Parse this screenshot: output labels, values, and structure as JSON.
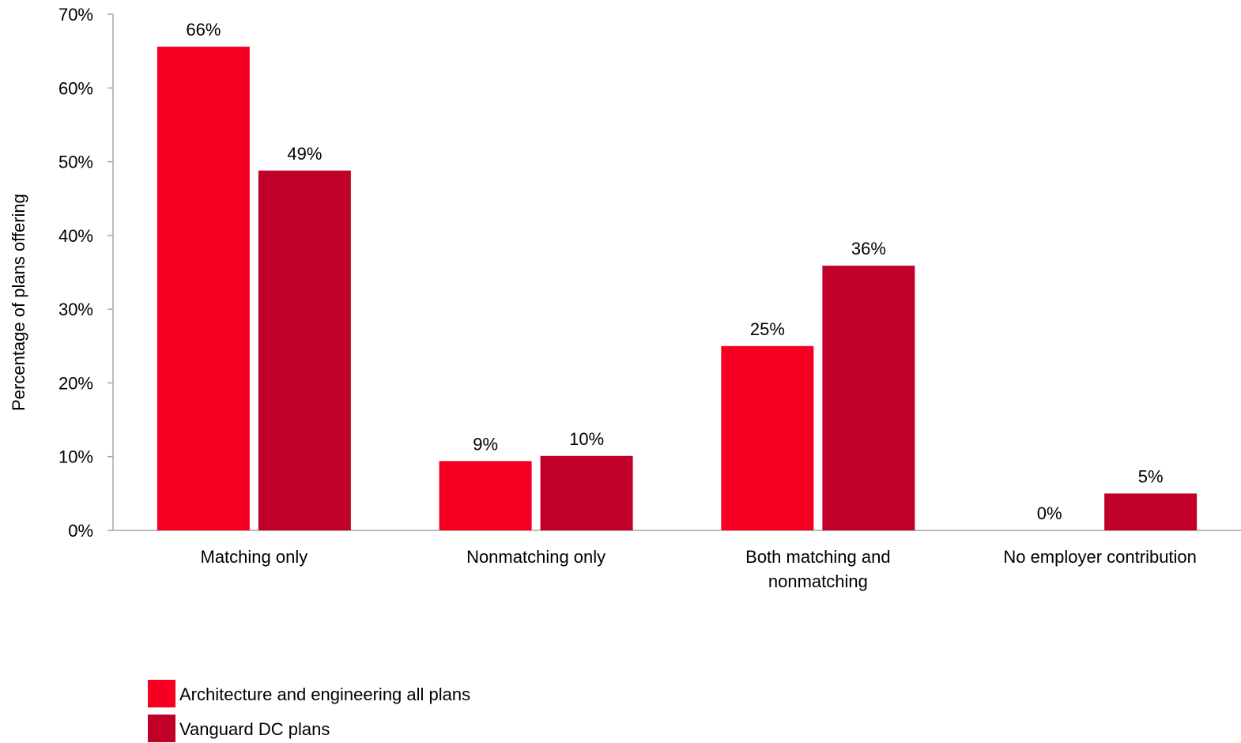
{
  "chart_data": {
    "type": "bar",
    "title": "",
    "xlabel": "",
    "ylabel": "Percentage of plans offering",
    "ylim": [
      0,
      70
    ],
    "yticks": [
      0,
      10,
      20,
      30,
      40,
      50,
      60,
      70
    ],
    "ytick_labels": [
      "0%",
      "10%",
      "20%",
      "30%",
      "40%",
      "50%",
      "60%",
      "70%"
    ],
    "value_suffix": "%",
    "grid": false,
    "legend_position": "bottom-left",
    "categories": [
      [
        "Matching only"
      ],
      [
        "Nonmatching only"
      ],
      [
        "Both matching and",
        "nonmatching"
      ],
      [
        "No employer contribution"
      ]
    ],
    "series": [
      {
        "name": "Architecture and engineering all plans",
        "color": "#f50022",
        "values": [
          65.6,
          9.4,
          25,
          0
        ],
        "labels": [
          "66%",
          "9%",
          "25%",
          "0%"
        ]
      },
      {
        "name": "Vanguard DC plans",
        "color": "#c00029",
        "values": [
          48.8,
          10.1,
          35.9,
          5
        ],
        "labels": [
          "49%",
          "10%",
          "36%",
          "5%"
        ]
      }
    ]
  }
}
